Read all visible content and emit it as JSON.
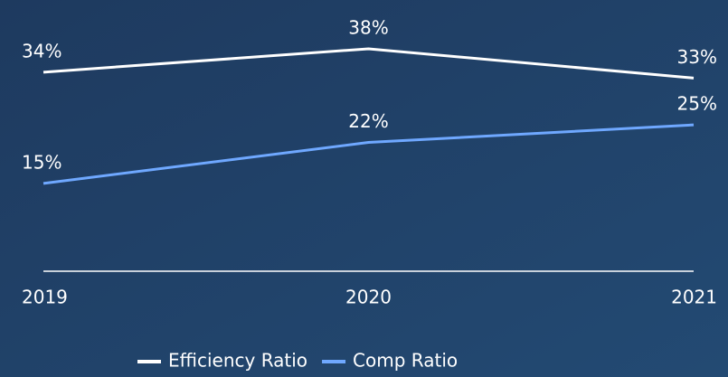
{
  "chart_data": {
    "type": "line",
    "categories": [
      "2019",
      "2020",
      "2021"
    ],
    "series": [
      {
        "name": "Efficiency Ratio",
        "color": "#ffffff",
        "values": [
          34,
          38,
          33
        ],
        "value_labels": [
          "34%",
          "38%",
          "33%"
        ]
      },
      {
        "name": "Comp Ratio",
        "color": "#6fa8ff",
        "values": [
          15,
          22,
          25
        ],
        "value_labels": [
          "15%",
          "22%",
          "25%"
        ]
      }
    ],
    "ylim": [
      0,
      40
    ]
  }
}
